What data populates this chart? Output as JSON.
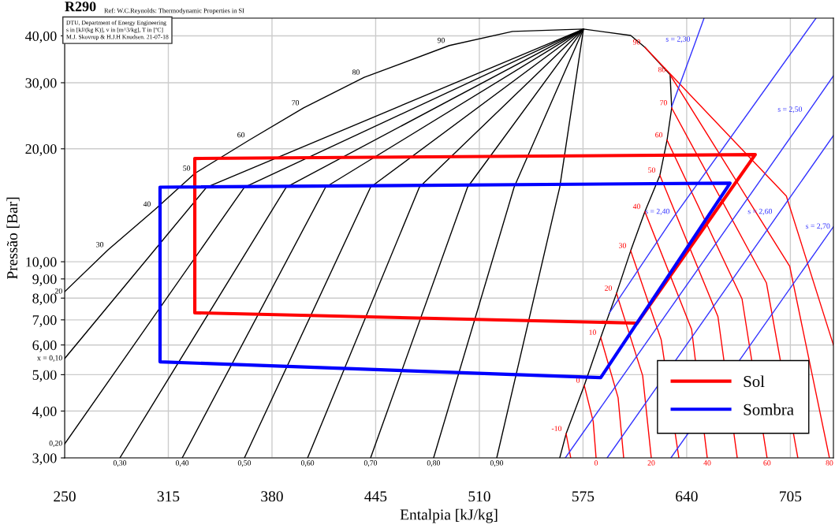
{
  "chart_data": {
    "type": "line",
    "title": "R290",
    "subtitle": "Ref: W.C.Reynolds: Thermodynamic Properties in SI",
    "xlabel": "Entalpia [kJ/kg]",
    "ylabel": "Pressão [Bar]",
    "log": "y",
    "xlim": [
      250,
      732
    ],
    "ylim": [
      3,
      44.6
    ],
    "xticks": [
      250,
      315,
      380,
      445,
      510,
      575,
      640,
      705
    ],
    "yticks": [
      {
        "value": 3,
        "label": "3,00"
      },
      {
        "value": 4,
        "label": "4,00"
      },
      {
        "value": 5,
        "label": "5,00"
      },
      {
        "value": 6,
        "label": "6,00"
      },
      {
        "value": 7,
        "label": "7,00"
      },
      {
        "value": 8,
        "label": "8,00"
      },
      {
        "value": 9,
        "label": "9,00"
      },
      {
        "value": 10,
        "label": "10,00"
      },
      {
        "value": 20,
        "label": "20,00"
      },
      {
        "value": 30,
        "label": "30,00"
      },
      {
        "value": 40,
        "label": "40,00"
      }
    ],
    "grid": true,
    "legend": "bottom right",
    "marker": "none",
    "line_style": "solid",
    "series": [
      {
        "color": "#000000",
        "x": [
          250,
          277.2,
          306.8,
          331.6,
          365.7,
          399.8,
          437.8,
          491.2,
          530.8,
          575.3,
          604.9,
          613.8,
          629.6,
          630.6,
          627.7,
          623.2,
          613.8,
          604.9,
          596.0,
          586.1,
          575.8,
          564.4,
          560.4
        ],
        "values": [
          8.32,
          10.76,
          13.8,
          17.2,
          21.1,
          25.7,
          31.0,
          37.7,
          41.1,
          41.7,
          40.1,
          37.3,
          31.5,
          25.7,
          21.1,
          17.0,
          13.6,
          10.7,
          8.24,
          6.28,
          4.68,
          3.48,
          3.0
        ]
      },
      {
        "color": "#000000",
        "x": [
          250,
          339.0,
          575.3
        ],
        "values": [
          5.52,
          15.8,
          41.7
        ]
      },
      {
        "color": "#000000",
        "x": [
          250,
          362.7,
          575.3
        ],
        "values": [
          3.27,
          15.8,
          41.7
        ]
      },
      {
        "color": "#000000",
        "x": [
          284.6,
          388.9,
          575.3
        ],
        "values": [
          3.0,
          15.8,
          41.7
        ]
      },
      {
        "color": "#000000",
        "x": [
          323.7,
          413.6,
          575.3
        ],
        "values": [
          3.0,
          15.8,
          41.7
        ]
      },
      {
        "color": "#000000",
        "x": [
          362.7,
          441.8,
          575.3
        ],
        "values": [
          3.0,
          15.8,
          41.7
        ]
      },
      {
        "color": "#000000",
        "x": [
          402.3,
          472.4,
          575.3
        ],
        "values": [
          3.0,
          15.8,
          41.7
        ]
      },
      {
        "color": "#000000",
        "x": [
          441.8,
          502.6,
          575.3
        ],
        "values": [
          3.0,
          15.8,
          41.7
        ]
      },
      {
        "color": "#000000",
        "x": [
          481.3,
          531.8,
          575.3
        ],
        "values": [
          3.0,
          15.8,
          41.7
        ]
      },
      {
        "color": "#000000",
        "x": [
          520.9,
          560.4,
          575.3
        ],
        "values": [
          3.0,
          15.8,
          41.7
        ]
      },
      {
        "color": "#ff0000",
        "x": [
          564.4,
          567.3
        ],
        "values": [
          3.48,
          3.0
        ]
      },
      {
        "color": "#ff0000",
        "x": [
          575.8,
          581.4,
          583.2
        ],
        "values": [
          4.68,
          3.75,
          3.0
        ]
      },
      {
        "color": "#ff0000",
        "x": [
          586.1,
          597.0,
          600.5
        ],
        "values": [
          6.28,
          4.34,
          3.0
        ]
      },
      {
        "color": "#ff0000",
        "x": [
          596.0,
          612.4,
          617.8
        ],
        "values": [
          8.24,
          4.97,
          3.0
        ]
      },
      {
        "color": "#ff0000",
        "x": [
          604.9,
          624.0,
          635.1
        ],
        "values": [
          10.7,
          6.2,
          3.0
        ]
      },
      {
        "color": "#ff0000",
        "x": [
          613.8,
          643.1,
          652.9
        ],
        "values": [
          13.6,
          6.6,
          3.0
        ]
      },
      {
        "color": "#ff0000",
        "x": [
          623.2,
          659.6,
          671.7
        ],
        "values": [
          17.0,
          7.14,
          3.0
        ]
      },
      {
        "color": "#ff0000",
        "x": [
          627.7,
          674.7,
          690.4
        ],
        "values": [
          21.1,
          7.96,
          3.0
        ]
      },
      {
        "color": "#ff0000",
        "x": [
          630.6,
          690.0,
          709.7
        ],
        "values": [
          25.7,
          8.78,
          3.0
        ]
      },
      {
        "color": "#ff0000",
        "x": [
          629.6,
          704.6,
          729.5
        ],
        "values": [
          31.5,
          9.72,
          3.0
        ]
      },
      {
        "color": "#ff0000",
        "x": [
          613.8,
          702.5,
          732
        ],
        "values": [
          37.3,
          14.96,
          6.0
        ]
      },
      {
        "color": "#3333ff",
        "x": [
          630.6,
          645.0,
          650.9
        ],
        "values": [
          25.9,
          38.0,
          44.6
        ]
      },
      {
        "color": "#3333ff",
        "x": [
          591.6,
          632.1,
          721.1
        ],
        "values": [
          7.31,
          13.2,
          44.6
        ]
      },
      {
        "color": "#3333ff",
        "x": [
          563.9,
          715.2,
          732
        ],
        "values": [
          3.0,
          24.7,
          31.3
        ]
      },
      {
        "color": "#3333ff",
        "x": [
          590.1,
          696.4,
          732
        ],
        "values": [
          3.0,
          13.2,
          21.7
        ]
      },
      {
        "color": "#3333ff",
        "x": [
          630.1,
          732
        ],
        "values": [
          3.0,
          12.4
        ]
      },
      {
        "name": "Sol",
        "color": "#ff0000",
        "x": [
          331.6,
          331.6,
          683.0,
          608.9,
          331.6,
          331.6
        ],
        "values": [
          12.0,
          18.85,
          19.3,
          6.86,
          7.31,
          13.0
        ]
      },
      {
        "name": "Sombra",
        "color": "#0000ff",
        "x": [
          309.8,
          309.8,
          667.2,
          586.1,
          309.8,
          309.8
        ],
        "values": [
          9.0,
          15.8,
          16.2,
          4.91,
          5.41,
          10.0
        ]
      }
    ],
    "annotations": [
      "DTU, Department of Energy Engineering\ns in [kJ/(kg K)], v in [m^3/kg], T in [ºC]\nM.J. Skovrup & H.J.H Knudsen. 21-07-18",
      {
        "text": "20",
        "x": 250,
        "y": 8.32
      },
      {
        "text": "30",
        "x": 277.2,
        "y": 10.76
      },
      {
        "text": "40",
        "x": 306.8,
        "y": 13.8
      },
      {
        "text": "50",
        "x": 331.6,
        "y": 17.2
      },
      {
        "text": "60",
        "x": 365.7,
        "y": 21.1
      },
      {
        "text": "70",
        "x": 399.8,
        "y": 25.7
      },
      {
        "text": "80",
        "x": 437.8,
        "y": 31.0
      },
      {
        "text": "90",
        "x": 491.2,
        "y": 37.7
      },
      {
        "text": "-10",
        "x": 564.4,
        "y": 3.48
      },
      {
        "text": "0",
        "x": 575.8,
        "y": 4.68
      },
      {
        "text": "10",
        "x": 586.1,
        "y": 6.28
      },
      {
        "text": "20",
        "x": 596.0,
        "y": 8.24
      },
      {
        "text": "30",
        "x": 604.9,
        "y": 10.7
      },
      {
        "text": "40",
        "x": 613.8,
        "y": 13.6
      },
      {
        "text": "50",
        "x": 623.2,
        "y": 17.0
      },
      {
        "text": "60",
        "x": 627.7,
        "y": 21.1
      },
      {
        "text": "70",
        "x": 630.6,
        "y": 25.7
      },
      {
        "text": "80",
        "x": 629.6,
        "y": 31.5
      },
      {
        "text": "90",
        "x": 613.8,
        "y": 37.3
      },
      {
        "text": "0",
        "x": 583.2,
        "y": 3.0
      },
      {
        "text": "20",
        "x": 617.8,
        "y": 3.0
      },
      {
        "text": "40",
        "x": 652.9,
        "y": 3.0
      },
      {
        "text": "60",
        "x": 690.4,
        "y": 3.0
      },
      {
        "text": "80",
        "x": 729.5,
        "y": 3.0
      },
      {
        "text": "x = 0,10",
        "x": 250,
        "y": 5.52
      },
      {
        "text": "0,20",
        "x": 250,
        "y": 3.27
      },
      {
        "text": "0,30",
        "x": 284.6,
        "y": 3.0
      },
      {
        "text": "0,40",
        "x": 323.7,
        "y": 3.0
      },
      {
        "text": "0,50",
        "x": 362.7,
        "y": 3.0
      },
      {
        "text": "0,60",
        "x": 402.3,
        "y": 3.0
      },
      {
        "text": "0,70",
        "x": 441.8,
        "y": 3.0
      },
      {
        "text": "0,80",
        "x": 481.3,
        "y": 3.0
      },
      {
        "text": "0,90",
        "x": 520.9,
        "y": 3.0
      },
      {
        "text": "s = 2,30",
        "x": 645.0,
        "y": 38.0
      },
      {
        "text": "s = 2,40",
        "x": 632.1,
        "y": 13.2
      },
      {
        "text": "s = 2,50",
        "x": 715.2,
        "y": 24.7
      },
      {
        "text": "s = 2,60",
        "x": 696.4,
        "y": 13.2
      },
      {
        "text": "s = 2,70",
        "x": 732,
        "y": 12.4
      }
    ]
  }
}
